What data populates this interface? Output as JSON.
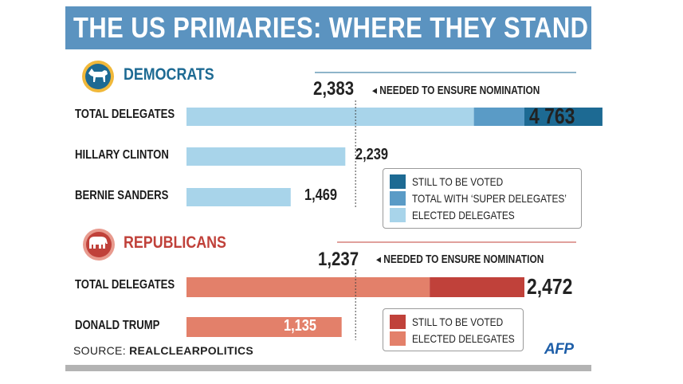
{
  "title": "THE US PRIMARIES: WHERE THEY STAND",
  "colors": {
    "banner": "#5b93c0",
    "dem_light": "#a8d4ea",
    "dem_mid": "#5a9bc6",
    "dem_dark": "#1d6a93",
    "dem_title": "#1d6a93",
    "rep_light": "#e3806a",
    "rep_dark": "#c0413a",
    "rep_title": "#c0413a"
  },
  "democrats": {
    "title": "DEMOCRATS",
    "icon": "donkey-icon",
    "threshold_value": "2,383",
    "threshold_text": "NEEDED TO ENSURE NOMINATION",
    "rows": [
      {
        "label": "TOTAL DELEGATES",
        "value_label": "4 763"
      },
      {
        "label": "HILLARY CLINTON",
        "value_label": "2,239"
      },
      {
        "label": "BERNIE SANDERS",
        "value_label": "1,469"
      }
    ],
    "legend": [
      "STILL TO BE VOTED",
      "TOTAL WITH ‘SUPER DELEGATES’",
      "ELECTED DELEGATES"
    ]
  },
  "republicans": {
    "title": "REPUBLICANS",
    "icon": "elephant-icon",
    "threshold_value": "1,237",
    "threshold_text": "NEEDED TO ENSURE NOMINATION",
    "rows": [
      {
        "label": "TOTAL DELEGATES",
        "value_label": "2,472"
      },
      {
        "label": "DONALD TRUMP",
        "value_label": "1,135"
      }
    ],
    "legend": [
      "STILL TO BE VOTED",
      "ELECTED DELEGATES"
    ]
  },
  "source_prefix": "SOURCE: ",
  "source_name": "REALCLEARPOLITICS",
  "logo": "AFP",
  "chart_data": [
    {
      "type": "bar",
      "title": "DEMOCRATS",
      "categories": [
        "TOTAL DELEGATES",
        "HILLARY CLINTON",
        "BERNIE SANDERS"
      ],
      "series": [
        {
          "name": "ELECTED DELEGATES",
          "values": [
            4051,
            2239,
            1469
          ]
        },
        {
          "name": "TOTAL WITH ‘SUPER DELEGATES’",
          "values": [
            712,
            0,
            0
          ]
        },
        {
          "name": "STILL TO BE VOTED",
          "values": [
            1100,
            0,
            0
          ]
        }
      ],
      "totals": [
        4763,
        2239,
        1469
      ],
      "threshold": 2383,
      "xlim": [
        0,
        4763
      ],
      "xlabel": "",
      "ylabel": ""
    },
    {
      "type": "bar",
      "title": "REPUBLICANS",
      "categories": [
        "TOTAL DELEGATES",
        "DONALD TRUMP"
      ],
      "series": [
        {
          "name": "ELECTED DELEGATES",
          "values": [
            1779,
            1135
          ]
        },
        {
          "name": "STILL TO BE VOTED",
          "values": [
            693,
            0
          ]
        }
      ],
      "totals": [
        2472,
        1135
      ],
      "threshold": 1237,
      "xlim": [
        0,
        2472
      ],
      "xlabel": "",
      "ylabel": ""
    }
  ]
}
